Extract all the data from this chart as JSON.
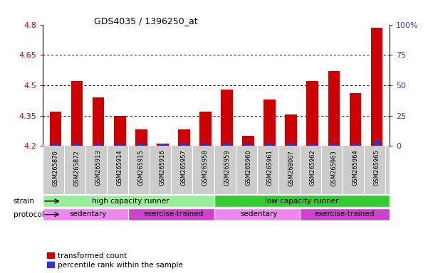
{
  "title": "GDS4035 / 1396250_at",
  "samples": [
    "GSM265870",
    "GSM265872",
    "GSM265913",
    "GSM265914",
    "GSM265915",
    "GSM265916",
    "GSM265957",
    "GSM265958",
    "GSM265959",
    "GSM265960",
    "GSM265961",
    "GSM268007",
    "GSM265962",
    "GSM265963",
    "GSM265964",
    "GSM265965"
  ],
  "transformed_count": [
    4.37,
    4.52,
    4.44,
    4.35,
    4.28,
    4.21,
    4.28,
    4.37,
    4.48,
    4.25,
    4.43,
    4.355,
    4.52,
    4.57,
    4.46,
    4.785
  ],
  "percentile_rank_pct": [
    2.0,
    2.0,
    2.0,
    2.0,
    2.0,
    2.0,
    2.0,
    2.0,
    2.0,
    2.0,
    2.0,
    2.0,
    2.0,
    2.0,
    2.0,
    5.0
  ],
  "ylim_left": [
    4.2,
    4.8
  ],
  "ylim_right": [
    0,
    100
  ],
  "yticks_left": [
    4.2,
    4.35,
    4.5,
    4.65,
    4.8
  ],
  "yticks_right": [
    0,
    25,
    50,
    75,
    100
  ],
  "grid_lines": [
    4.35,
    4.5,
    4.65
  ],
  "bar_color_red": "#CC0000",
  "bar_color_blue": "#3333CC",
  "bar_width": 0.55,
  "blue_bar_width": 0.28,
  "strain_groups": [
    {
      "label": "high capacity runner",
      "start": 0,
      "end": 8,
      "color": "#99EE99"
    },
    {
      "label": "low capacity runner",
      "start": 8,
      "end": 16,
      "color": "#33CC33"
    }
  ],
  "protocol_groups": [
    {
      "label": "sedentary",
      "start": 0,
      "end": 4,
      "color": "#EE88EE"
    },
    {
      "label": "exercise-trained",
      "start": 4,
      "end": 8,
      "color": "#CC44CC"
    },
    {
      "label": "sedentary",
      "start": 8,
      "end": 12,
      "color": "#EE88EE"
    },
    {
      "label": "exercise-trained",
      "start": 12,
      "end": 16,
      "color": "#CC44CC"
    }
  ],
  "legend_red_label": "transformed count",
  "legend_blue_label": "percentile rank within the sample",
  "strain_label": "strain",
  "protocol_label": "protocol",
  "tick_label_color_left": "#CC0000",
  "tick_label_color_right": "#3333CC",
  "base_value": 4.2,
  "bg_color": "#CCCCCC",
  "fig_bg": "#FFFFFF"
}
